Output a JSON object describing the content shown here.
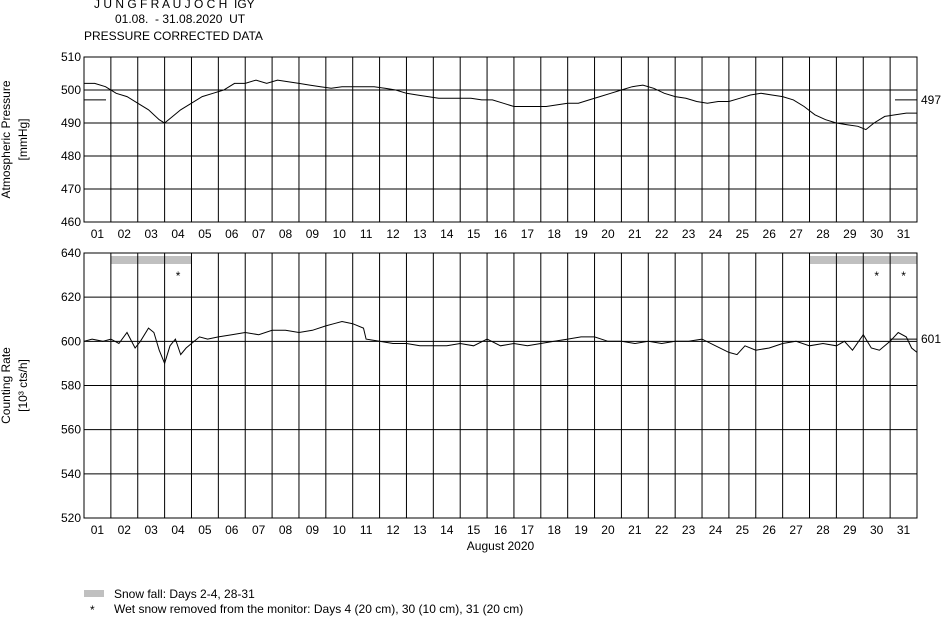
{
  "header": {
    "title": "J U N G F R A U J O C H  IGY",
    "period": "01.08.  - 31.08.2020  UT",
    "subtitle": "PRESSURE CORRECTED DATA"
  },
  "chart_data": [
    {
      "type": "line",
      "name": "pressure",
      "ylabel": "Atmospheric Pressure",
      "yunit": "[mmHg]",
      "ylim": [
        460,
        510
      ],
      "yticks": [
        460,
        470,
        480,
        490,
        500,
        510
      ],
      "x_range_days": [
        1,
        32
      ],
      "day_labels": [
        "01",
        "02",
        "03",
        "04",
        "05",
        "06",
        "07",
        "08",
        "09",
        "10",
        "11",
        "12",
        "13",
        "14",
        "15",
        "16",
        "17",
        "18",
        "19",
        "20",
        "21",
        "22",
        "23",
        "24",
        "25",
        "26",
        "27",
        "28",
        "29",
        "30",
        "31"
      ],
      "reference_value": 497,
      "reference_label": "497",
      "grid": true,
      "series": [
        {
          "points": [
            [
              1.0,
              502
            ],
            [
              1.4,
              502
            ],
            [
              1.8,
              501
            ],
            [
              2.2,
              499
            ],
            [
              2.6,
              498
            ],
            [
              3.0,
              496
            ],
            [
              3.4,
              494
            ],
            [
              3.8,
              491
            ],
            [
              4.0,
              490
            ],
            [
              4.3,
              492
            ],
            [
              4.6,
              494
            ],
            [
              5.0,
              496
            ],
            [
              5.4,
              498
            ],
            [
              5.8,
              499
            ],
            [
              6.2,
              500
            ],
            [
              6.6,
              502
            ],
            [
              7.0,
              502
            ],
            [
              7.4,
              503
            ],
            [
              7.8,
              502
            ],
            [
              8.2,
              503
            ],
            [
              8.6,
              502.5
            ],
            [
              9.0,
              502
            ],
            [
              9.4,
              501.5
            ],
            [
              9.8,
              501
            ],
            [
              10.2,
              500.5
            ],
            [
              10.6,
              501
            ],
            [
              11.0,
              501
            ],
            [
              11.4,
              501
            ],
            [
              11.8,
              501
            ],
            [
              12.2,
              500.5
            ],
            [
              12.6,
              500
            ],
            [
              13.0,
              499
            ],
            [
              13.4,
              498.5
            ],
            [
              13.8,
              498
            ],
            [
              14.2,
              497.5
            ],
            [
              14.6,
              497.5
            ],
            [
              15.0,
              497.5
            ],
            [
              15.4,
              497.5
            ],
            [
              15.8,
              497
            ],
            [
              16.2,
              497
            ],
            [
              16.6,
              496
            ],
            [
              17.0,
              495
            ],
            [
              17.4,
              495
            ],
            [
              17.8,
              495
            ],
            [
              18.2,
              495
            ],
            [
              18.6,
              495.5
            ],
            [
              19.0,
              496
            ],
            [
              19.4,
              496
            ],
            [
              19.8,
              497
            ],
            [
              20.2,
              498
            ],
            [
              20.6,
              499
            ],
            [
              21.0,
              500
            ],
            [
              21.4,
              501
            ],
            [
              21.8,
              501.5
            ],
            [
              22.2,
              500.5
            ],
            [
              22.6,
              499
            ],
            [
              23.0,
              498
            ],
            [
              23.4,
              497.5
            ],
            [
              23.8,
              496.5
            ],
            [
              24.2,
              496
            ],
            [
              24.6,
              496.5
            ],
            [
              25.0,
              496.5
            ],
            [
              25.4,
              497.5
            ],
            [
              25.8,
              498.5
            ],
            [
              26.2,
              499
            ],
            [
              26.6,
              498.5
            ],
            [
              27.0,
              498
            ],
            [
              27.4,
              497
            ],
            [
              27.8,
              495
            ],
            [
              28.2,
              492.5
            ],
            [
              28.6,
              491
            ],
            [
              29.0,
              490
            ],
            [
              29.4,
              489.5
            ],
            [
              29.8,
              489
            ],
            [
              30.1,
              488
            ],
            [
              30.4,
              490
            ],
            [
              30.8,
              492
            ],
            [
              31.2,
              492.5
            ],
            [
              31.6,
              493
            ],
            [
              32.0,
              493
            ]
          ]
        }
      ]
    },
    {
      "type": "line",
      "name": "counting-rate",
      "ylabel": "Counting Rate",
      "yunit": "[10³ cts/h]",
      "ylim": [
        520,
        640
      ],
      "yticks": [
        520,
        540,
        560,
        580,
        600,
        620,
        640
      ],
      "x_range_days": [
        1,
        32
      ],
      "day_labels": [
        "01",
        "02",
        "03",
        "04",
        "05",
        "06",
        "07",
        "08",
        "09",
        "10",
        "11",
        "12",
        "13",
        "14",
        "15",
        "16",
        "17",
        "18",
        "19",
        "20",
        "21",
        "22",
        "23",
        "24",
        "25",
        "26",
        "27",
        "28",
        "29",
        "30",
        "31"
      ],
      "xlabel": "August 2020",
      "reference_value": 601,
      "reference_label": "601",
      "grid": true,
      "snow_fall_days": [
        [
          2,
          5
        ],
        [
          28,
          32
        ]
      ],
      "snow_removed_days": [
        4,
        30,
        31
      ],
      "series": [
        {
          "points": [
            [
              1.0,
              600
            ],
            [
              1.3,
              601
            ],
            [
              1.7,
              600
            ],
            [
              2.0,
              601
            ],
            [
              2.3,
              599
            ],
            [
              2.6,
              604
            ],
            [
              2.9,
              597
            ],
            [
              3.1,
              600
            ],
            [
              3.4,
              606
            ],
            [
              3.6,
              604
            ],
            [
              3.8,
              596
            ],
            [
              4.0,
              590
            ],
            [
              4.2,
              598
            ],
            [
              4.4,
              601
            ],
            [
              4.6,
              594
            ],
            [
              4.8,
              597
            ],
            [
              5.0,
              599
            ],
            [
              5.3,
              602
            ],
            [
              5.6,
              601
            ],
            [
              6.0,
              602
            ],
            [
              6.5,
              603
            ],
            [
              7.0,
              604
            ],
            [
              7.5,
              603
            ],
            [
              8.0,
              605
            ],
            [
              8.5,
              605
            ],
            [
              9.0,
              604
            ],
            [
              9.5,
              605
            ],
            [
              10.0,
              607
            ],
            [
              10.3,
              608
            ],
            [
              10.6,
              609
            ],
            [
              11.0,
              608
            ],
            [
              11.4,
              606
            ],
            [
              11.5,
              601
            ],
            [
              12.0,
              600
            ],
            [
              12.5,
              599
            ],
            [
              13.0,
              599
            ],
            [
              13.5,
              598
            ],
            [
              14.0,
              598
            ],
            [
              14.5,
              598
            ],
            [
              15.0,
              599
            ],
            [
              15.5,
              598
            ],
            [
              16.0,
              601
            ],
            [
              16.5,
              598
            ],
            [
              17.0,
              599
            ],
            [
              17.5,
              598
            ],
            [
              18.0,
              599
            ],
            [
              18.5,
              600
            ],
            [
              19.0,
              601
            ],
            [
              19.5,
              602
            ],
            [
              20.0,
              602
            ],
            [
              20.5,
              600
            ],
            [
              21.0,
              600
            ],
            [
              21.5,
              599
            ],
            [
              22.0,
              600
            ],
            [
              22.5,
              599
            ],
            [
              23.0,
              600
            ],
            [
              23.5,
              600
            ],
            [
              24.0,
              601
            ],
            [
              24.5,
              598
            ],
            [
              25.0,
              595
            ],
            [
              25.3,
              594
            ],
            [
              25.6,
              598
            ],
            [
              26.0,
              596
            ],
            [
              26.5,
              597
            ],
            [
              27.0,
              599
            ],
            [
              27.5,
              600
            ],
            [
              28.0,
              598
            ],
            [
              28.5,
              599
            ],
            [
              29.0,
              598
            ],
            [
              29.3,
              600
            ],
            [
              29.6,
              596
            ],
            [
              30.0,
              603
            ],
            [
              30.3,
              597
            ],
            [
              30.6,
              596
            ],
            [
              31.0,
              600
            ],
            [
              31.3,
              604
            ],
            [
              31.6,
              602
            ],
            [
              31.8,
              597
            ],
            [
              32.0,
              595
            ]
          ]
        }
      ]
    }
  ],
  "legend": {
    "snow_fall": "Snow fall: Days 2-4, 28-31",
    "snow_marker": "*",
    "snow_removed": "Wet snow removed from the monitor: Days 4 (20 cm), 30 (10 cm), 31 (20 cm)"
  },
  "colors": {
    "snow_bar": "#c0c0c0",
    "line": "#000000",
    "grid": "#000000"
  }
}
